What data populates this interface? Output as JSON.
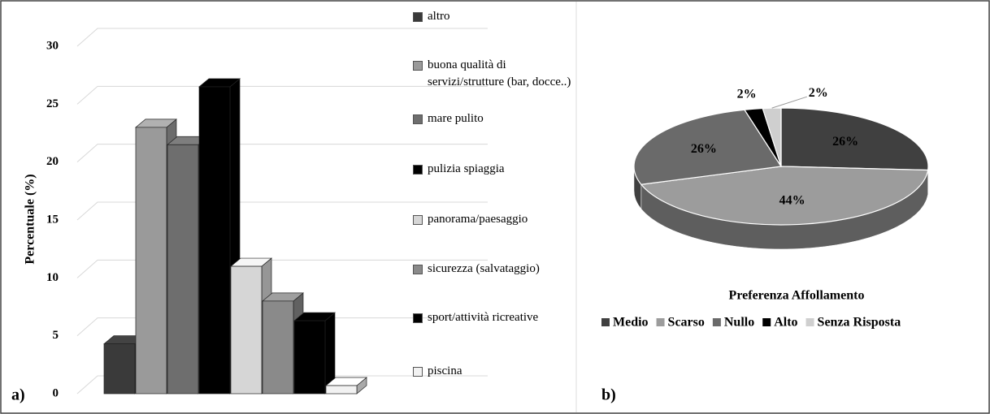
{
  "chart_data": [
    {
      "type": "bar3d",
      "y_label": "Percentuale (%)",
      "annotation": "a)",
      "categories": [
        "altro",
        "buona qualità di servizi/strutture (bar, docce..)",
        "mare pulito",
        "pulizia spiaggia",
        "panorama/paesaggio",
        "sicurezza (salvataggio)",
        "sport/attività ricreative",
        "piscina"
      ],
      "values": [
        4.3,
        23,
        21.5,
        26.5,
        11,
        8,
        6.3,
        0.7
      ],
      "colors": [
        "#3a3a3a",
        "#9a9a9a",
        "#6e6e6e",
        "#000000",
        "#d6d6d6",
        "#8a8a8a",
        "#000000",
        "#f2f2f2"
      ],
      "ylim": [
        0,
        30
      ],
      "yticks": [
        0,
        5,
        10,
        15,
        20,
        25,
        30
      ],
      "grid": true
    },
    {
      "type": "pie3d",
      "title": "Preferenza Affollamento",
      "annotation": "b)",
      "labels": [
        "Medio",
        "Scarso",
        "Nullo",
        "Alto",
        "Senza Risposta"
      ],
      "values": [
        26,
        44,
        26,
        2,
        2
      ],
      "value_labels": [
        "26%",
        "44%",
        "26%",
        "2%",
        "2%"
      ],
      "colors": [
        "#404040",
        "#9c9c9c",
        "#6a6a6a",
        "#000000",
        "#cfcfcf"
      ]
    }
  ]
}
